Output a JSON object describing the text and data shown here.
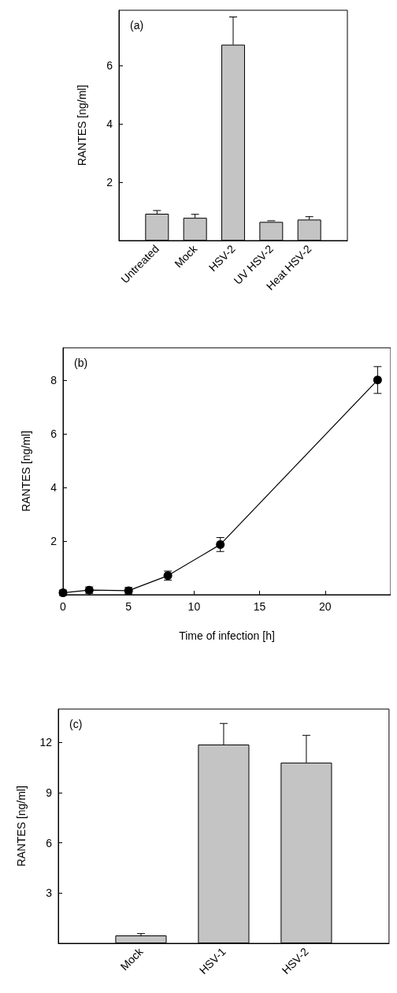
{
  "chart_data": [
    {
      "type": "bar",
      "annotations": [
        "(a)"
      ],
      "ylabel": "RANTES [ng/ml]",
      "categories": [
        null,
        "Untreated",
        "Mock",
        "HSV-2",
        "UV HSV-2",
        "Heat HSV-2",
        null
      ],
      "color": "#c4c4c4",
      "values": [
        null,
        0.92,
        0.78,
        6.72,
        0.64,
        0.72,
        null
      ],
      "errors": [
        null,
        [
          0.92,
          1.03
        ],
        [
          0.78,
          0.9
        ],
        [
          6.72,
          7.67
        ],
        [
          0.64,
          0.68
        ],
        [
          0.72,
          0.82
        ],
        null
      ],
      "ylim": [
        0,
        7.9
      ],
      "yticks": [
        2,
        4,
        6
      ]
    },
    {
      "type": "line",
      "annotations": [
        "(b)"
      ],
      "ylabel": "RANTES [ng/ml]",
      "xlabel": "Time of infection [h]",
      "color": "#000000",
      "marker": "circle",
      "x": [
        0,
        2,
        5,
        8,
        12,
        24
      ],
      "values": [
        0.07,
        0.17,
        0.15,
        0.71,
        1.87,
        8.0
      ],
      "errors": [
        0.1,
        0.12,
        0.12,
        0.17,
        0.26,
        0.5
      ],
      "xlim": [
        0,
        25
      ],
      "xticks": [
        0,
        5,
        10,
        15,
        20
      ],
      "ylim": [
        0,
        9.2
      ],
      "yticks": [
        2,
        4,
        6,
        8
      ]
    },
    {
      "type": "bar",
      "annotations": [
        "(c)"
      ],
      "ylabel": "RANTES [ng/ml]",
      "categories": [
        null,
        "Mock",
        "HSV-1",
        "HSV-2",
        null
      ],
      "color": "#c4c4c4",
      "values": [
        null,
        0.47,
        11.88,
        10.8,
        null
      ],
      "errors": [
        null,
        [
          0.47,
          0.58
        ],
        [
          11.88,
          13.14
        ],
        [
          10.8,
          12.43
        ],
        null
      ],
      "ylim": [
        0,
        14
      ],
      "yticks": [
        3,
        6,
        9,
        12
      ]
    }
  ]
}
